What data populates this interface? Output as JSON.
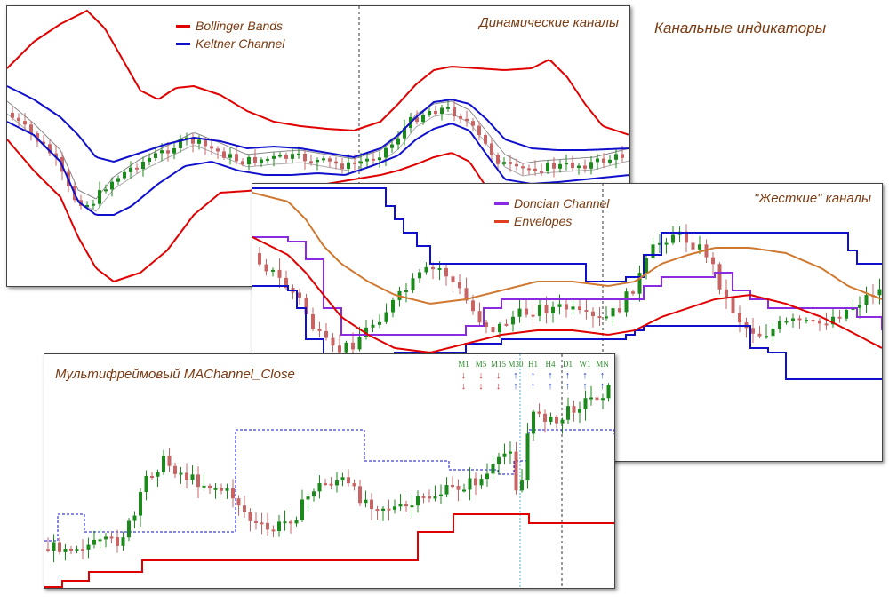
{
  "page_title": "Канальные индикаторы",
  "colors": {
    "bull": "#1a8a1a",
    "bear": "#c86464",
    "red": "#e00000",
    "blue": "#1010cc",
    "orange": "#d07830",
    "purple": "#8a2be2",
    "gray": "#888888"
  },
  "panels": [
    {
      "id": "dynamic",
      "title": "Динамические каналы",
      "legend": [
        {
          "label": "Bollinger Bands",
          "color": "#e00000"
        },
        {
          "label": "Keltner Channel",
          "color": "#1010cc"
        }
      ]
    },
    {
      "id": "hard",
      "title": "\"Жесткие\" каналы",
      "legend": [
        {
          "label": "Doncian Channel",
          "color": "#8a2be2"
        },
        {
          "label": "Envelopes",
          "color": "#e04020"
        }
      ]
    },
    {
      "id": "mtf",
      "title": "Мультифреймовый MAChannel_Close",
      "timeframes": [
        {
          "label": "M1",
          "arrow": "↓",
          "signal": "down"
        },
        {
          "label": "M5",
          "arrow": "↓",
          "signal": "down"
        },
        {
          "label": "M15",
          "arrow": "↓",
          "signal": "down"
        },
        {
          "label": "M30",
          "arrow": "↑",
          "signal": "up"
        },
        {
          "label": "H1",
          "arrow": "↑",
          "signal": "up"
        },
        {
          "label": "H4",
          "arrow": "↑",
          "signal": "up"
        },
        {
          "label": "D1",
          "arrow": "↑",
          "signal": "up"
        },
        {
          "label": "W1",
          "arrow": "↑",
          "signal": "up"
        },
        {
          "label": "MN",
          "arrow": "↑",
          "signal": "up"
        }
      ]
    }
  ],
  "chart_data": [
    {
      "type": "line",
      "title": "Динамические каналы",
      "series": [
        {
          "name": "Bollinger Bands",
          "color": "#e00000"
        },
        {
          "name": "Keltner Channel",
          "color": "#1010cc"
        }
      ]
    },
    {
      "type": "line",
      "title": "\"Жесткие\" каналы",
      "series": [
        {
          "name": "Doncian Channel",
          "color": "#8a2be2"
        },
        {
          "name": "Envelopes",
          "color": "#e04020"
        }
      ]
    },
    {
      "type": "line",
      "title": "Мультифреймовый MAChannel_Close"
    }
  ]
}
